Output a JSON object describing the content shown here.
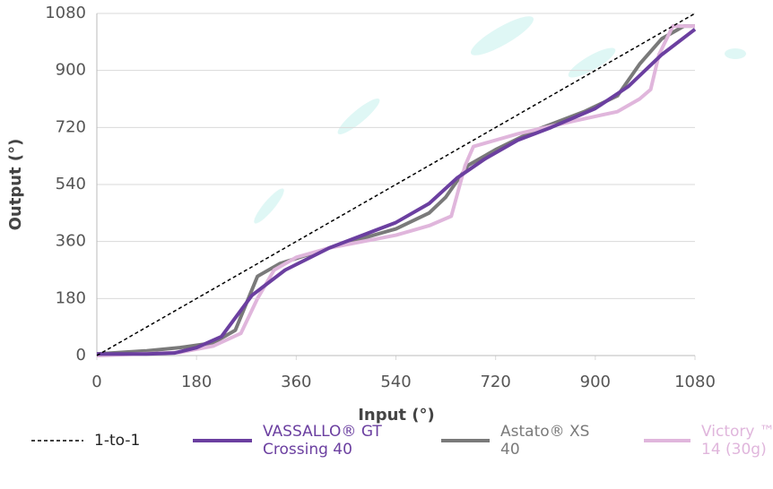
{
  "chart_data": {
    "type": "line",
    "xlabel": "Input (°)",
    "ylabel": "Output (°)",
    "xlim": [
      0,
      1080
    ],
    "xticks": [
      0,
      180,
      360,
      540,
      720,
      900,
      1080
    ],
    "ylim": [
      0,
      1080
    ],
    "yticks": [
      0,
      180,
      360,
      540,
      720,
      900,
      1080
    ],
    "grid": true,
    "series": [
      {
        "name": "1-to-1",
        "color": "#000000",
        "dashed": true,
        "x": [
          0,
          1080
        ],
        "values": [
          0,
          1080
        ]
      },
      {
        "name": "VASSALLO® GT Crossing 40",
        "color": "#6b3fa0",
        "x": [
          0,
          90,
          140,
          180,
          225,
          280,
          340,
          420,
          540,
          600,
          650,
          700,
          760,
          820,
          900,
          960,
          1020,
          1080
        ],
        "values": [
          5,
          5,
          8,
          25,
          60,
          190,
          270,
          340,
          420,
          480,
          560,
          620,
          680,
          720,
          780,
          850,
          950,
          1030
        ]
      },
      {
        "name": "Astato® XS 40",
        "color": "#7a7a7a",
        "x": [
          0,
          90,
          150,
          210,
          250,
          290,
          330,
          420,
          540,
          600,
          630,
          670,
          720,
          790,
          880,
          940,
          980,
          1020,
          1060,
          1080
        ],
        "values": [
          5,
          15,
          25,
          40,
          80,
          250,
          290,
          340,
          400,
          450,
          500,
          600,
          650,
          710,
          770,
          820,
          920,
          1000,
          1040,
          1040
        ]
      },
      {
        "name": "Victory ™ 14 (30g)",
        "color": "#e0b6dc",
        "x": [
          0,
          150,
          210,
          260,
          290,
          320,
          360,
          420,
          540,
          600,
          640,
          665,
          680,
          760,
          860,
          940,
          980,
          1000,
          1015,
          1040,
          1080
        ],
        "values": [
          0,
          10,
          30,
          70,
          180,
          270,
          310,
          340,
          380,
          410,
          440,
          600,
          660,
          700,
          740,
          770,
          810,
          840,
          950,
          1040,
          1040
        ]
      }
    ]
  }
}
